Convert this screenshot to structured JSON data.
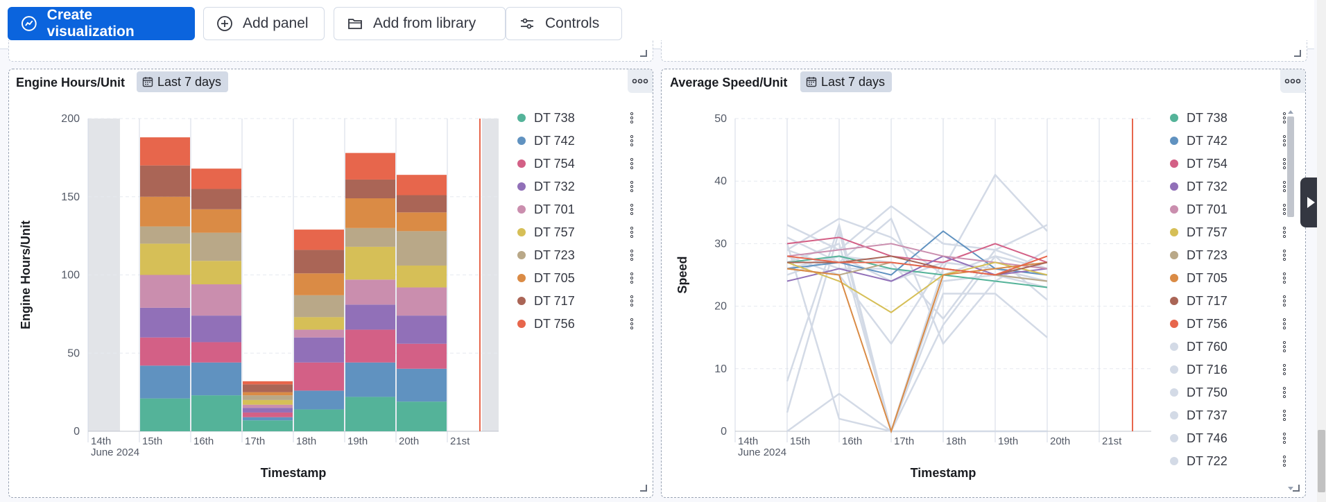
{
  "toolbar": {
    "create_label": "Create visualization",
    "add_panel_label": "Add panel",
    "add_library_label": "Add from library",
    "controls_label": "Controls"
  },
  "panels": [
    {
      "title": "Engine Hours/Unit",
      "time_badge": "Last 7 days",
      "chart_data": {
        "type": "bar",
        "stacked": true,
        "ylabel": "Engine Hours/Unit",
        "xlabel": "Timestamp",
        "ylim": [
          0,
          200
        ],
        "yticks": [
          "0",
          "50",
          "100",
          "150",
          "200"
        ],
        "xticks": [
          "14th",
          "15th",
          "16th",
          "17th",
          "18th",
          "19th",
          "20th",
          "21st"
        ],
        "xsub": "June 2024",
        "categories": [
          "15th",
          "16th",
          "17th",
          "18th",
          "19th",
          "20th"
        ],
        "series": [
          {
            "name": "DT 738",
            "color": "#54b399",
            "values": [
              21,
              23,
              7,
              14,
              22,
              19
            ]
          },
          {
            "name": "DT 742",
            "color": "#6092c0",
            "values": [
              21,
              21,
              2,
              12,
              22,
              21
            ]
          },
          {
            "name": "DT 754",
            "color": "#d36086",
            "values": [
              18,
              13,
              3,
              18,
              21,
              16
            ]
          },
          {
            "name": "DT 732",
            "color": "#9170b8",
            "values": [
              19,
              17,
              3,
              16,
              16,
              18
            ]
          },
          {
            "name": "DT 701",
            "color": "#ca8eae",
            "values": [
              21,
              20,
              2,
              5,
              16,
              18
            ]
          },
          {
            "name": "DT 757",
            "color": "#d6bf57",
            "values": [
              20,
              15,
              3,
              8,
              21,
              14
            ]
          },
          {
            "name": "DT 723",
            "color": "#b9a888",
            "values": [
              11,
              18,
              3,
              14,
              12,
              22
            ]
          },
          {
            "name": "DT 705",
            "color": "#da8b45",
            "values": [
              19,
              15,
              2,
              14,
              19,
              12
            ]
          },
          {
            "name": "DT 717",
            "color": "#aa6556",
            "values": [
              20,
              13,
              5,
              15,
              12,
              11
            ]
          },
          {
            "name": "DT 756",
            "color": "#e7664c",
            "values": [
              18,
              13,
              2,
              13,
              17,
              13
            ]
          }
        ]
      }
    },
    {
      "title": "Average Speed/Unit",
      "time_badge": "Last 7 days",
      "chart_data": {
        "type": "line",
        "ylabel": "Speed",
        "xlabel": "Timestamp",
        "ylim": [
          0,
          50
        ],
        "yticks": [
          "0",
          "10",
          "20",
          "30",
          "40",
          "50"
        ],
        "xticks": [
          "14th",
          "15th",
          "16th",
          "17th",
          "18th",
          "19th",
          "20th",
          "21st"
        ],
        "xsub": "June 2024",
        "x": [
          "15th",
          "16th",
          "17th",
          "18th",
          "19th",
          "20th"
        ],
        "series": [
          {
            "name": "DT 738",
            "color": "#54b399",
            "values": [
              27,
              28,
              26,
              25,
              24,
              23
            ]
          },
          {
            "name": "DT 742",
            "color": "#6092c0",
            "values": [
              26,
              27,
              25,
              32,
              26,
              25
            ]
          },
          {
            "name": "DT 754",
            "color": "#d36086",
            "values": [
              30,
              31,
              28,
              27,
              30,
              27
            ]
          },
          {
            "name": "DT 732",
            "color": "#9170b8",
            "values": [
              24,
              26,
              24,
              28,
              25,
              26
            ]
          },
          {
            "name": "DT 701",
            "color": "#ca8eae",
            "values": [
              28,
              29,
              30,
              28,
              27,
              26
            ]
          },
          {
            "name": "DT 757",
            "color": "#d6bf57",
            "values": [
              27,
              24,
              19,
              25,
              27,
              25
            ]
          },
          {
            "name": "DT 723",
            "color": "#b9a888",
            "values": [
              26,
              25,
              27,
              26,
              25,
              24
            ]
          },
          {
            "name": "DT 705",
            "color": "#da8b45",
            "values": [
              26,
              25,
              0,
              25,
              26,
              27
            ]
          },
          {
            "name": "DT 717",
            "color": "#aa6556",
            "values": [
              27,
              27,
              28,
              26,
              25,
              27
            ]
          },
          {
            "name": "DT 756",
            "color": "#e7664c",
            "values": [
              28,
              27,
              27,
              26,
              25,
              28
            ]
          },
          {
            "name": "DT 760",
            "color": "#d3dae6",
            "values": [
              33,
              29,
              36,
              30,
              29,
              33
            ]
          },
          {
            "name": "DT 716",
            "color": "#d3dae6",
            "values": [
              29,
              34,
              31,
              25,
              28,
              26
            ]
          },
          {
            "name": "DT 750",
            "color": "#d3dae6",
            "values": [
              3,
              32,
              0,
              26,
              41,
              32
            ]
          },
          {
            "name": "DT 737",
            "color": "#d3dae6",
            "values": [
              30,
              2,
              0,
              0,
              0,
              0
            ]
          },
          {
            "name": "DT 746",
            "color": "#d3dae6",
            "values": [
              8,
              33,
              0,
              22,
              22,
              15
            ]
          },
          {
            "name": "DT 722",
            "color": "#d3dae6",
            "values": [
              26,
              28,
              24,
              27,
              26,
              25
            ]
          },
          {
            "color": "#d3dae6",
            "values": [
              29,
              26,
              26,
              24,
              25,
              24
            ]
          },
          {
            "color": "#d3dae6",
            "values": [
              0,
              6,
              0,
              17,
              28,
              21
            ]
          },
          {
            "color": "#d3dae6",
            "values": [
              28,
              25,
              14,
              27,
              26,
              24
            ]
          },
          {
            "color": "#d3dae6",
            "values": [
              31,
              27,
              34,
              14,
              24,
              29
            ]
          },
          {
            "color": "#d3dae6",
            "values": [
              25,
              28,
              27,
              18,
              29,
              26
            ]
          },
          {
            "color": "#d3dae6",
            "values": [
              27,
              30,
              0,
              24,
              25,
              23
            ]
          }
        ]
      }
    }
  ],
  "icons": {
    "create": "create-visualization-icon",
    "add": "plus-circle-icon",
    "library": "folder-icon",
    "controls": "sliders-icon",
    "calendar": "calendar-icon",
    "menu": "ellipsis-icon",
    "expand": "arrow-right-icon"
  }
}
